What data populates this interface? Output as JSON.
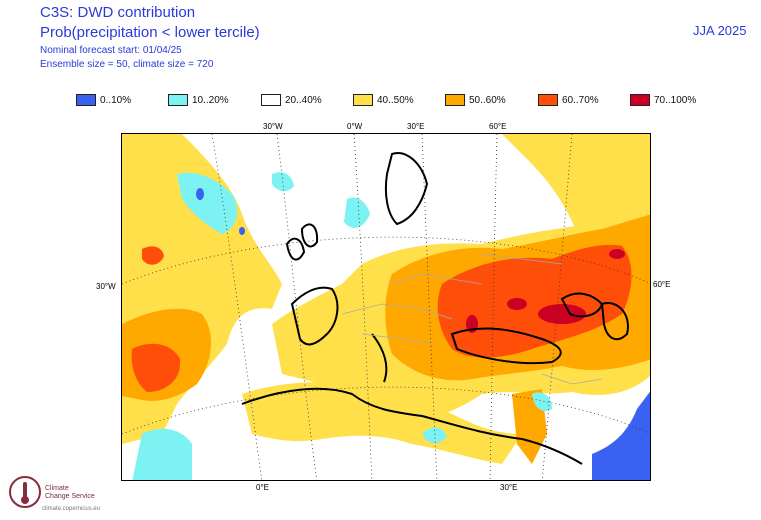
{
  "header": {
    "title_line1": "C3S: DWD contribution",
    "title_line2": "Prob(precipitation < lower tercile)",
    "subtitle_line1": "Nominal forecast start: 01/04/25",
    "subtitle_line2": "Ensemble size = 50, climate size = 720",
    "season": "JJA 2025"
  },
  "legend": [
    {
      "label": "0..10%",
      "color": "#3a62f2"
    },
    {
      "label": "10..20%",
      "color": "#7cf2f2"
    },
    {
      "label": "20..40%",
      "color": "#ffffff"
    },
    {
      "label": "40..50%",
      "color": "#ffe04a"
    },
    {
      "label": "50..60%",
      "color": "#ffa800"
    },
    {
      "label": "60..70%",
      "color": "#ff4e0a"
    },
    {
      "label": "70..100%",
      "color": "#cc0022"
    }
  ],
  "coordinates": {
    "top_30w": "30°W",
    "top_0w": "0°W",
    "top_30e": "30°E",
    "top_60e": "60°E",
    "left_30w": "30°W",
    "right_60e": "60°E",
    "bottom_0e": "0°E",
    "bottom_30e": "30°E"
  },
  "logo": {
    "line1": "Climate",
    "line2": "Change Service",
    "url": "climate.copernicus.eu"
  }
}
